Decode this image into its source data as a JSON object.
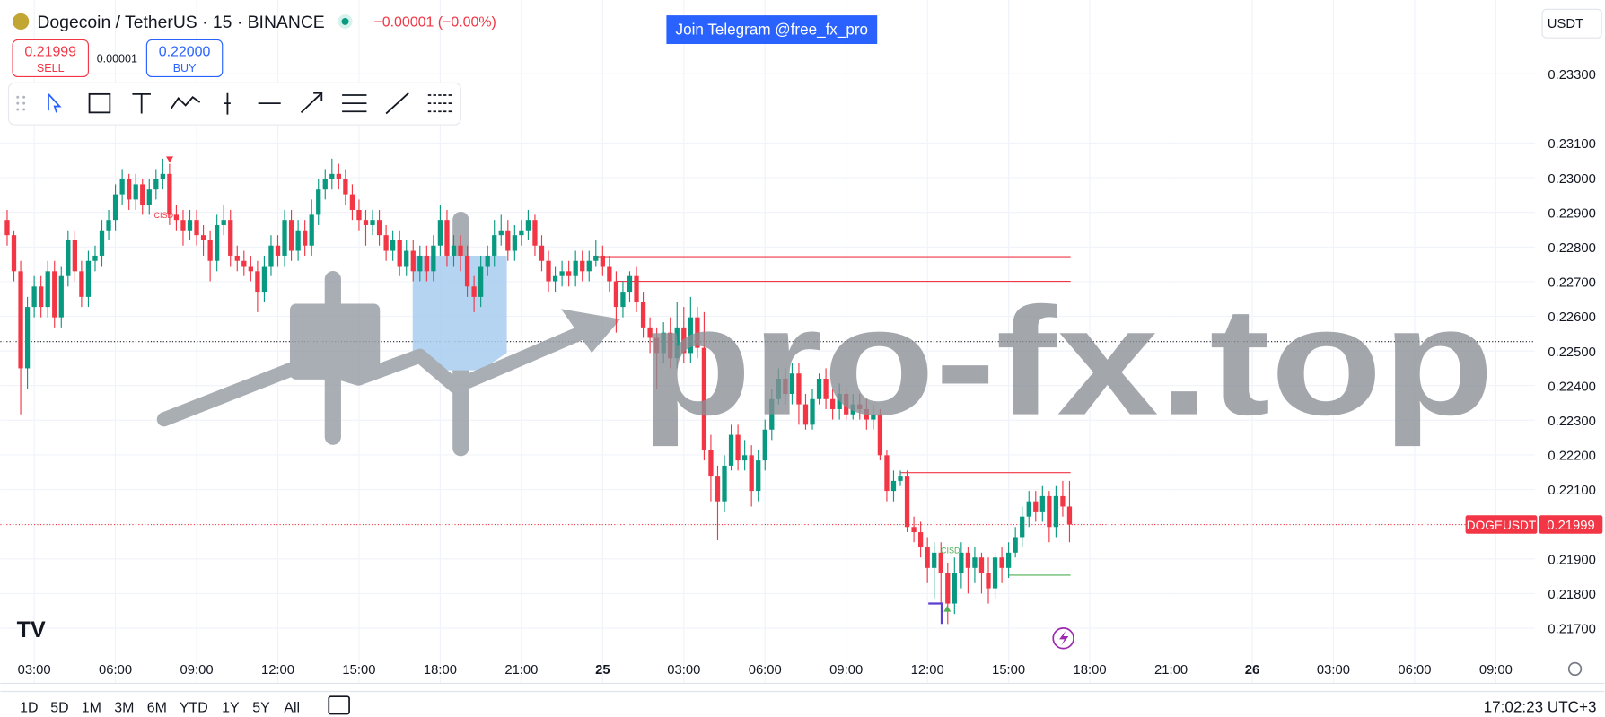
{
  "header": {
    "title": "Dogecoin / TetherUS · 15 · BINANCE",
    "change": "−0.00001 (−0.00%)",
    "banner": "Join Telegram @free_fx_pro",
    "currency": "USDT"
  },
  "trade": {
    "sell_price": "0.21999",
    "sell_label": "SELL",
    "spread": "0.00001",
    "buy_price": "0.22000",
    "buy_label": "BUY"
  },
  "watermark": "pro-fx.top",
  "ranges": [
    "1D",
    "5D",
    "1M",
    "3M",
    "6M",
    "YTD",
    "1Y",
    "5Y",
    "All"
  ],
  "clock": "17:02:23 UTC+3",
  "chart_data": {
    "type": "candlestick",
    "up_color": "#089981",
    "down_color": "#f23645",
    "grid": true,
    "xlim": [
      -0.4,
      225.8
    ],
    "ylim": [
      0.21541,
      0.23513
    ],
    "xticks": [
      {
        "value": 4,
        "label": "03:00"
      },
      {
        "value": 16,
        "label": "06:00"
      },
      {
        "value": 28,
        "label": "09:00"
      },
      {
        "value": 40,
        "label": "12:00"
      },
      {
        "value": 52,
        "label": "15:00"
      },
      {
        "value": 64,
        "label": "18:00"
      },
      {
        "value": 76,
        "label": "21:00"
      },
      {
        "value": 88,
        "label": "25"
      },
      {
        "value": 100,
        "label": "03:00"
      },
      {
        "value": 112,
        "label": "06:00"
      },
      {
        "value": 124,
        "label": "09:00"
      },
      {
        "value": 136,
        "label": "12:00"
      },
      {
        "value": 148,
        "label": "15:00"
      },
      {
        "value": 160,
        "label": "18:00"
      },
      {
        "value": 172,
        "label": "21:00"
      },
      {
        "value": 184,
        "label": "26"
      },
      {
        "value": 196,
        "label": "03:00"
      },
      {
        "value": 208,
        "label": "06:00"
      },
      {
        "value": 220,
        "label": "09:00"
      }
    ],
    "yticks": [
      {
        "value": 0.217,
        "label": "0.21700"
      },
      {
        "value": 0.218,
        "label": "0.21800"
      },
      {
        "value": 0.219,
        "label": "0.21900"
      },
      {
        "value": 0.221,
        "label": "0.22100"
      },
      {
        "value": 0.222,
        "label": "0.22200"
      },
      {
        "value": 0.223,
        "label": "0.22300"
      },
      {
        "value": 0.224,
        "label": "0.22400"
      },
      {
        "value": 0.225,
        "label": "0.22500"
      },
      {
        "value": 0.226,
        "label": "0.22600"
      },
      {
        "value": 0.227,
        "label": "0.22700"
      },
      {
        "value": 0.228,
        "label": "0.22800"
      },
      {
        "value": 0.229,
        "label": "0.22900"
      },
      {
        "value": 0.23,
        "label": "0.23000"
      },
      {
        "value": 0.231,
        "label": "0.23100"
      },
      {
        "value": 0.233,
        "label": "0.23300"
      }
    ],
    "open": [
      0.22878,
      0.22834,
      0.2273,
      0.2245,
      0.22627,
      0.22686,
      0.22627,
      0.2273,
      0.22597,
      0.22716,
      0.22819,
      0.2273,
      0.22656,
      0.2276,
      0.22775,
      0.22848,
      0.22878,
      0.22952,
      0.22996,
      0.22937,
      0.22981,
      0.22922,
      0.22966,
      0.22996,
      0.23011,
      0.22893,
      0.22878,
      0.22848,
      0.22878,
      0.22834,
      0.22819,
      0.2276,
      0.22863,
      0.22878,
      0.22775,
      0.2276,
      0.22745,
      0.2273,
      0.22671,
      0.22745,
      0.22804,
      0.22775,
      0.22878,
      0.22789,
      0.22848,
      0.22804,
      0.22893,
      0.22966,
      0.22996,
      0.23011,
      0.22996,
      0.22952,
      0.22907,
      0.22878,
      0.22863,
      0.22878,
      0.22834,
      0.22789,
      0.22819,
      0.22745,
      0.22789,
      0.2273,
      0.22775,
      0.2273,
      0.22804,
      0.22878,
      0.22775,
      0.22804,
      0.22775,
      0.22686,
      0.22656,
      0.22745,
      0.22775,
      0.22834,
      0.22848,
      0.22789,
      0.22834,
      0.22848,
      0.22878,
      0.22804,
      0.2276,
      0.22701,
      0.22716,
      0.2273,
      0.22716,
      0.2276,
      0.2273,
      0.2276,
      0.22775,
      0.22745,
      0.22701,
      0.22627,
      0.22671,
      0.22716,
      0.22642,
      0.22568,
      0.22538,
      0.22494,
      0.22553,
      0.22479,
      0.22568,
      0.22494,
      0.22597,
      0.22509,
      0.22214,
      0.2214,
      0.22066,
      0.22169,
      0.22258,
      0.22184,
      0.22199,
      0.22096,
      0.22184,
      0.22273,
      0.22361,
      0.2242,
      0.22376,
      0.22435,
      0.22346,
      0.22287,
      0.22361,
      0.2242,
      0.22361,
      0.22332,
      0.22376,
      0.22317,
      0.22346,
      0.22332,
      0.22302,
      0.22317,
      0.22199,
      0.22096,
      0.22125,
      0.2214,
      0.21992,
      0.21977,
      0.21933,
      0.21874,
      0.21918,
      0.21859,
      0.21771,
      0.21859,
      0.21918,
      0.21874,
      0.21904,
      0.21859,
      0.21815,
      0.21904,
      0.21874,
      0.21918,
      0.21963,
      0.22022,
      0.22066,
      0.22037,
      0.22081,
      0.21992,
      0.22081,
      0.22051
    ],
    "high": [
      0.22907,
      0.22848,
      0.2276,
      0.22656,
      0.22716,
      0.22716,
      0.2276,
      0.2276,
      0.22745,
      0.22848,
      0.22848,
      0.2276,
      0.22789,
      0.22804,
      0.22878,
      0.22907,
      0.22981,
      0.23025,
      0.23011,
      0.23011,
      0.22996,
      0.22996,
      0.23025,
      0.23055,
      0.2304,
      0.22922,
      0.22907,
      0.22907,
      0.22907,
      0.22863,
      0.22848,
      0.22893,
      0.22922,
      0.22907,
      0.22804,
      0.22789,
      0.22775,
      0.2276,
      0.22775,
      0.22834,
      0.22834,
      0.22907,
      0.22907,
      0.22878,
      0.22878,
      0.22937,
      0.22996,
      0.23025,
      0.23055,
      0.2304,
      0.23025,
      0.22981,
      0.22937,
      0.22907,
      0.22907,
      0.22907,
      0.22863,
      0.22848,
      0.22848,
      0.22819,
      0.22819,
      0.22804,
      0.22804,
      0.22834,
      0.22922,
      0.22907,
      0.22834,
      0.22834,
      0.22804,
      0.22716,
      0.22775,
      0.22804,
      0.22878,
      0.22893,
      0.22878,
      0.22863,
      0.22878,
      0.22907,
      0.22893,
      0.22834,
      0.22789,
      0.22745,
      0.2276,
      0.2276,
      0.22789,
      0.22789,
      0.22789,
      0.22819,
      0.22804,
      0.22775,
      0.2273,
      0.22701,
      0.2273,
      0.22745,
      0.22671,
      0.22597,
      0.22568,
      0.22583,
      0.22597,
      0.22642,
      0.22627,
      0.22656,
      0.22627,
      0.22612,
      0.22258,
      0.22169,
      0.22199,
      0.22287,
      0.22287,
      0.22243,
      0.22228,
      0.22214,
      0.22302,
      0.22391,
      0.2245,
      0.2245,
      0.22465,
      0.22465,
      0.22376,
      0.22391,
      0.22435,
      0.2245,
      0.22391,
      0.22406,
      0.22391,
      0.22376,
      0.22376,
      0.22361,
      0.22346,
      0.22332,
      0.22214,
      0.22155,
      0.22155,
      0.22155,
      0.22022,
      0.22007,
      0.21963,
      0.21948,
      0.21948,
      0.21889,
      0.21904,
      0.21948,
      0.21933,
      0.21933,
      0.21918,
      0.21904,
      0.21918,
      0.21933,
      0.21948,
      0.21992,
      0.22051,
      0.22096,
      0.22096,
      0.2211,
      0.22096,
      0.2211,
      0.22125,
      0.22125
    ],
    "low": [
      0.22804,
      0.22701,
      0.22317,
      0.22391,
      0.22597,
      0.22597,
      0.22597,
      0.22568,
      0.22568,
      0.22686,
      0.22701,
      0.22627,
      0.22627,
      0.2273,
      0.22745,
      0.22819,
      0.22848,
      0.22922,
      0.22907,
      0.22907,
      0.22893,
      0.22893,
      0.22937,
      0.22966,
      0.22863,
      0.22848,
      0.22804,
      0.22819,
      0.22804,
      0.22775,
      0.22701,
      0.2273,
      0.22834,
      0.22745,
      0.2273,
      0.22716,
      0.22701,
      0.22612,
      0.22642,
      0.22716,
      0.22745,
      0.22745,
      0.2276,
      0.2276,
      0.22775,
      0.22775,
      0.22863,
      0.22937,
      0.22966,
      0.22966,
      0.22922,
      0.22878,
      0.22848,
      0.22804,
      0.22834,
      0.22804,
      0.2276,
      0.2276,
      0.22716,
      0.22716,
      0.22701,
      0.22701,
      0.22701,
      0.22701,
      0.22775,
      0.22745,
      0.22745,
      0.2273,
      0.22656,
      0.22612,
      0.22627,
      0.22716,
      0.22745,
      0.22804,
      0.2276,
      0.2276,
      0.22804,
      0.22819,
      0.22775,
      0.2273,
      0.22671,
      0.22671,
      0.22686,
      0.22686,
      0.22686,
      0.22701,
      0.22701,
      0.22745,
      0.22716,
      0.22671,
      0.22553,
      0.22597,
      0.22642,
      0.22612,
      0.22538,
      0.22494,
      0.22391,
      0.22465,
      0.2245,
      0.2245,
      0.22465,
      0.22465,
      0.22479,
      0.22184,
      0.22066,
      0.21954,
      0.22037,
      0.22155,
      0.22155,
      0.22155,
      0.22051,
      0.22066,
      0.22155,
      0.22243,
      0.22346,
      0.22346,
      0.22346,
      0.22287,
      0.22273,
      0.22273,
      0.22346,
      0.22332,
      0.22302,
      0.22302,
      0.22302,
      0.22302,
      0.22302,
      0.22273,
      0.22273,
      0.22184,
      0.22066,
      0.22066,
      0.2211,
      0.21977,
      0.21948,
      0.21904,
      0.2183,
      0.21786,
      0.21771,
      0.21712,
      0.21741,
      0.21815,
      0.218,
      0.2183,
      0.218,
      0.21771,
      0.21786,
      0.2183,
      0.21845,
      0.21904,
      0.21933,
      0.21992,
      0.22007,
      0.22007,
      0.21948,
      0.21963,
      0.22022,
      0.21948
    ],
    "close": [
      0.22834,
      0.2273,
      0.2245,
      0.22627,
      0.22686,
      0.22627,
      0.2273,
      0.22597,
      0.22716,
      0.22819,
      0.2273,
      0.22656,
      0.2276,
      0.22775,
      0.22848,
      0.22878,
      0.22952,
      0.22996,
      0.22937,
      0.22981,
      0.22922,
      0.22966,
      0.22996,
      0.23011,
      0.22893,
      0.22878,
      0.22848,
      0.22878,
      0.22834,
      0.22819,
      0.2276,
      0.22863,
      0.22878,
      0.22775,
      0.2276,
      0.22745,
      0.2273,
      0.22671,
      0.22745,
      0.22804,
      0.22775,
      0.22878,
      0.22789,
      0.22848,
      0.22804,
      0.22893,
      0.22966,
      0.22996,
      0.23011,
      0.22996,
      0.22952,
      0.22907,
      0.22878,
      0.22863,
      0.22878,
      0.22834,
      0.22789,
      0.22819,
      0.22745,
      0.22789,
      0.2273,
      0.22775,
      0.2273,
      0.22804,
      0.22878,
      0.22775,
      0.22804,
      0.22775,
      0.22686,
      0.22656,
      0.22745,
      0.22775,
      0.22834,
      0.22848,
      0.22789,
      0.22834,
      0.22848,
      0.22878,
      0.22804,
      0.2276,
      0.22701,
      0.22716,
      0.2273,
      0.22716,
      0.2276,
      0.2273,
      0.2276,
      0.22775,
      0.22745,
      0.22701,
      0.22627,
      0.22671,
      0.22716,
      0.22642,
      0.22568,
      0.22538,
      0.22494,
      0.22553,
      0.22479,
      0.22568,
      0.22494,
      0.22597,
      0.22509,
      0.22214,
      0.2214,
      0.22066,
      0.22169,
      0.22258,
      0.22184,
      0.22199,
      0.22096,
      0.22184,
      0.22273,
      0.22361,
      0.2242,
      0.22376,
      0.22435,
      0.22346,
      0.22287,
      0.22361,
      0.2242,
      0.22361,
      0.22332,
      0.22376,
      0.22317,
      0.22346,
      0.22332,
      0.22302,
      0.22317,
      0.22199,
      0.22096,
      0.22125,
      0.2214,
      0.21992,
      0.21977,
      0.21933,
      0.21874,
      0.21918,
      0.21859,
      0.21771,
      0.21859,
      0.21918,
      0.21874,
      0.21904,
      0.21859,
      0.21815,
      0.21904,
      0.21874,
      0.21918,
      0.21963,
      0.22022,
      0.22066,
      0.22037,
      0.22081,
      0.21992,
      0.22081,
      0.22051,
      0.21999
    ],
    "levels": [
      {
        "price": 0.22772,
        "color": "#f23645"
      },
      {
        "price": 0.22701,
        "color": "#f23645"
      },
      {
        "price": 0.22149,
        "color": "#f23645"
      },
      {
        "price": 0.21853,
        "color": "#4caf50"
      }
    ],
    "reference_line": 0.22527,
    "last_price": {
      "symbol": "DOGEUSDT",
      "value": 0.21999
    },
    "annotations": [
      "CISD",
      "CISD"
    ]
  }
}
